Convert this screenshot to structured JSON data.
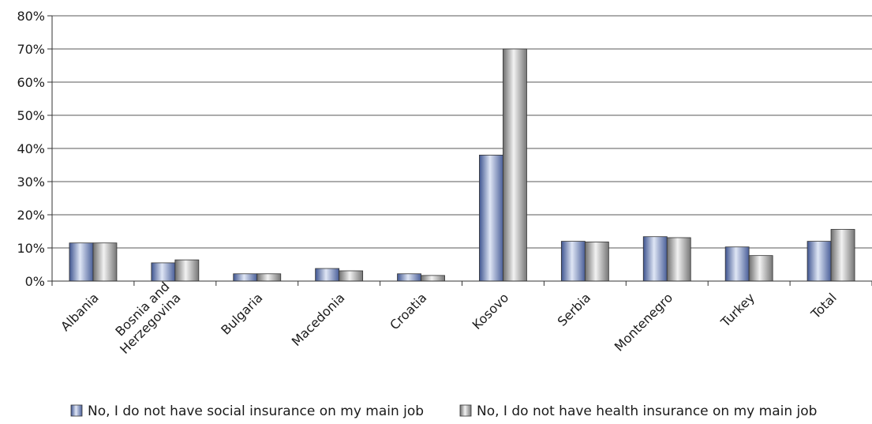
{
  "chart_data": {
    "type": "bar",
    "title": "",
    "xlabel": "",
    "ylabel": "",
    "ylim": [
      0,
      80
    ],
    "y_ticks": [
      "0%",
      "10%",
      "20%",
      "30%",
      "40%",
      "50%",
      "60%",
      "70%",
      "80%"
    ],
    "y_tick_values": [
      0,
      10,
      20,
      30,
      40,
      50,
      60,
      70,
      80
    ],
    "categories": [
      [
        "Albania"
      ],
      [
        "Bosnia and",
        "Herzegovina"
      ],
      [
        "Bulgaria"
      ],
      [
        "Macedonia"
      ],
      [
        "Croatia"
      ],
      [
        "Kosovo"
      ],
      [
        "Serbia"
      ],
      [
        "Montenegro"
      ],
      [
        "Turkey"
      ],
      [
        "Total"
      ]
    ],
    "series": [
      {
        "name": "No, I do not have social insurance on my main job",
        "color": "#7b8fc0",
        "values": [
          11.5,
          5.5,
          2.2,
          3.8,
          2.2,
          38.0,
          12.0,
          13.4,
          10.3,
          12.0
        ]
      },
      {
        "name": "No, I do not have health insurance on my main job",
        "color": "#a8a8a8",
        "values": [
          11.5,
          6.4,
          2.2,
          3.1,
          1.7,
          70.0,
          11.8,
          13.1,
          7.7,
          15.6
        ]
      }
    ],
    "grid": true,
    "gridlines": "horizontal",
    "legend_position": "bottom"
  }
}
